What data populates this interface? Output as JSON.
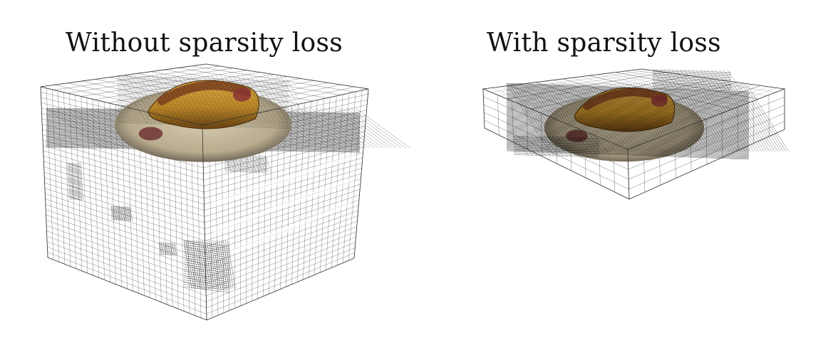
{
  "figure": {
    "panels": [
      {
        "title": "Without sparsity loss"
      },
      {
        "title": "With sparsity loss"
      }
    ],
    "colors": {
      "background": "#ffffff",
      "grid_lines": "#222222",
      "bun": "#c8912a",
      "sausage": "#8a4a22",
      "plate": "#b8ab8e"
    },
    "subject": "hotdog-on-plate"
  }
}
